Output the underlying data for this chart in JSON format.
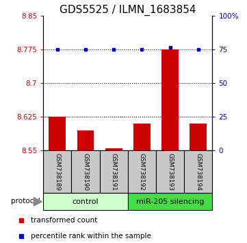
{
  "title": "GDS5525 / ILMN_1683854",
  "samples": [
    "GSM738189",
    "GSM738190",
    "GSM738191",
    "GSM738192",
    "GSM738193",
    "GSM738194"
  ],
  "red_values": [
    8.625,
    8.595,
    8.555,
    8.61,
    8.775,
    8.61
  ],
  "blue_values": [
    8.775,
    8.775,
    8.775,
    8.775,
    8.78,
    8.775
  ],
  "ylim_left": [
    8.55,
    8.85
  ],
  "ylim_right": [
    0,
    100
  ],
  "yticks_left": [
    8.55,
    8.625,
    8.7,
    8.775,
    8.85
  ],
  "yticks_right": [
    0,
    25,
    50,
    75,
    100
  ],
  "ytick_labels_left": [
    "8.55",
    "8.625",
    "8.7",
    "8.775",
    "8.85"
  ],
  "ytick_labels_right": [
    "0",
    "25",
    "50",
    "75",
    "100%"
  ],
  "dotted_lines": [
    8.625,
    8.7,
    8.775
  ],
  "bar_color": "#CC0000",
  "dot_color": "#0000CC",
  "bar_bottom": 8.55,
  "bar_width": 0.6,
  "legend_items": [
    {
      "color": "#CC0000",
      "label": "transformed count"
    },
    {
      "color": "#0000CC",
      "label": "percentile rank within the sample"
    }
  ],
  "protocol_label": "protocol",
  "group_labels": [
    "control",
    "miR-205 silencing"
  ],
  "group_colors": [
    "#CCFFCC",
    "#44DD44"
  ],
  "gray_box_color": "#C8C8C8",
  "tick_color_left": "#CC0000",
  "tick_color_right": "#0000CC",
  "title_fontsize": 11,
  "tick_fontsize": 7.5,
  "sample_fontsize": 6.5,
  "legend_fontsize": 7.5,
  "group_fontsize": 8
}
